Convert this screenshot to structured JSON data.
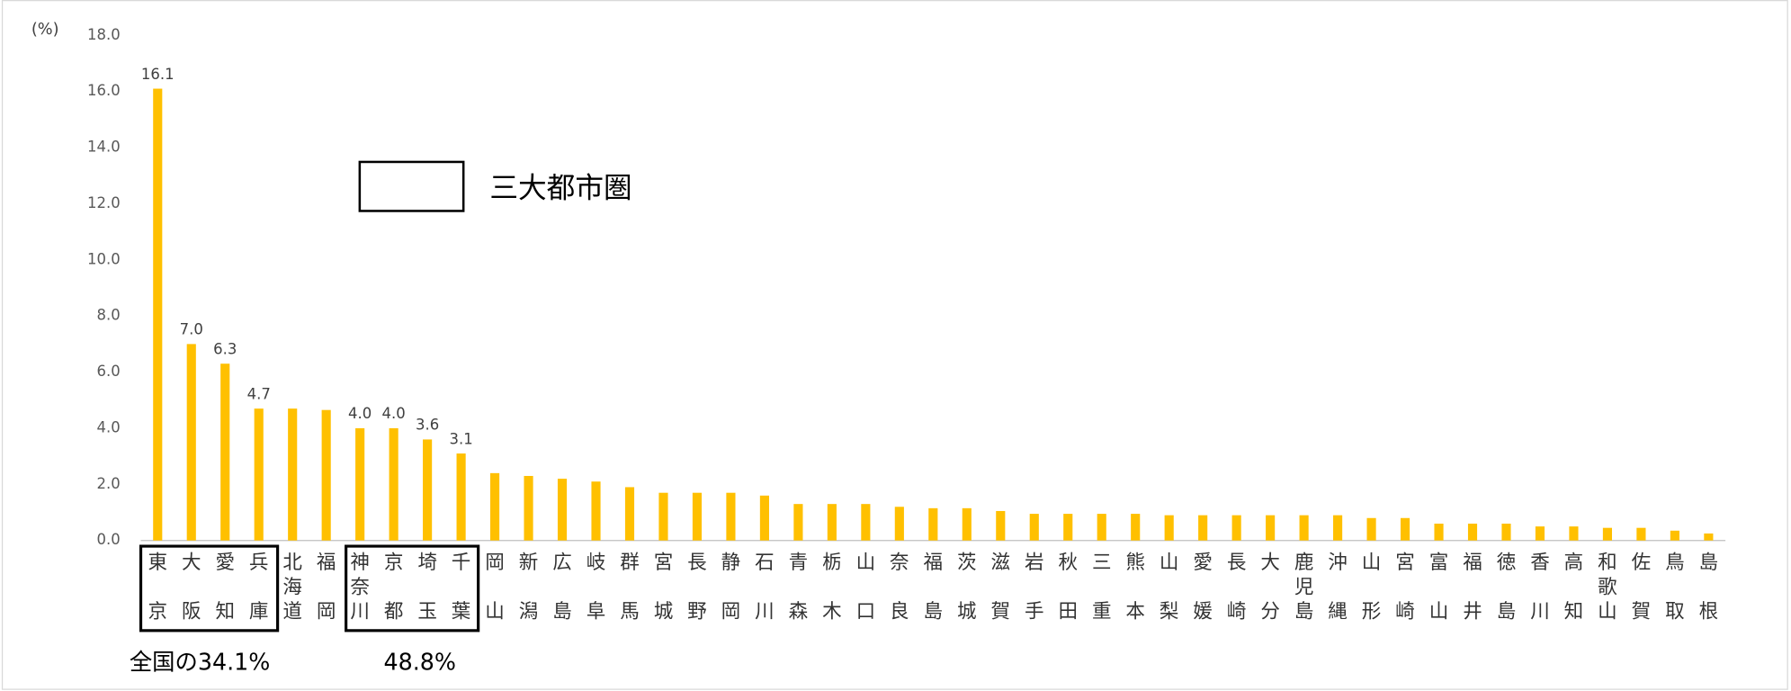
{
  "chart_data": {
    "type": "bar",
    "y_unit": "(%)",
    "legend_label": "三大都市圏",
    "annotations": [
      "全国の34.1%",
      "48.8%"
    ],
    "color": "#ffc000",
    "categories": [
      "東京",
      "大阪",
      "愛知",
      "兵庫",
      "北海道",
      "福岡",
      "神奈川",
      "京都",
      "埼玉",
      "千葉",
      "岡山",
      "新潟",
      "広島",
      "岐阜",
      "群馬",
      "宮城",
      "長野",
      "静岡",
      "石川",
      "青森",
      "栃木",
      "山口",
      "奈良",
      "福島",
      "茨城",
      "滋賀",
      "岩手",
      "秋田",
      "三重",
      "熊本",
      "山梨",
      "愛媛",
      "長崎",
      "大分",
      "鹿児島",
      "沖縄",
      "山形",
      "宮崎",
      "富山",
      "福井",
      "徳島",
      "香川",
      "高知",
      "和歌山",
      "佐賀",
      "鳥取",
      "島根"
    ],
    "values": [
      16.1,
      7.0,
      6.3,
      4.7,
      4.7,
      4.65,
      4.0,
      4.0,
      3.6,
      3.1,
      2.4,
      2.3,
      2.2,
      2.1,
      1.9,
      1.7,
      1.7,
      1.7,
      1.6,
      1.3,
      1.3,
      1.3,
      1.2,
      1.15,
      1.15,
      1.05,
      0.95,
      0.95,
      0.95,
      0.95,
      0.9,
      0.9,
      0.9,
      0.9,
      0.9,
      0.9,
      0.8,
      0.8,
      0.6,
      0.6,
      0.6,
      0.5,
      0.5,
      0.45,
      0.45,
      0.35,
      0.25
    ],
    "value_labels": [
      "16.1",
      "7.0",
      "6.3",
      "4.7",
      null,
      null,
      "4.0",
      "4.0",
      "3.6",
      "3.1",
      null,
      null,
      null,
      null,
      null,
      null,
      null,
      null,
      null,
      null,
      null,
      null,
      null,
      null,
      null,
      null,
      null,
      null,
      null,
      null,
      null,
      null,
      null,
      null,
      null,
      null,
      null,
      null,
      null,
      null,
      null,
      null,
      null,
      null,
      null,
      null,
      null
    ],
    "ylim": [
      0,
      18
    ],
    "yticks": [
      {
        "value": 0,
        "label": "0.0"
      },
      {
        "value": 2,
        "label": "2.0"
      },
      {
        "value": 4,
        "label": "4.0"
      },
      {
        "value": 6,
        "label": "6.0"
      },
      {
        "value": 8,
        "label": "8.0"
      },
      {
        "value": 10,
        "label": "10.0"
      },
      {
        "value": 12,
        "label": "12.0"
      },
      {
        "value": 14,
        "label": "14.0"
      },
      {
        "value": 16,
        "label": "16.0"
      },
      {
        "value": 18,
        "label": "18.0"
      }
    ],
    "grid": false
  }
}
